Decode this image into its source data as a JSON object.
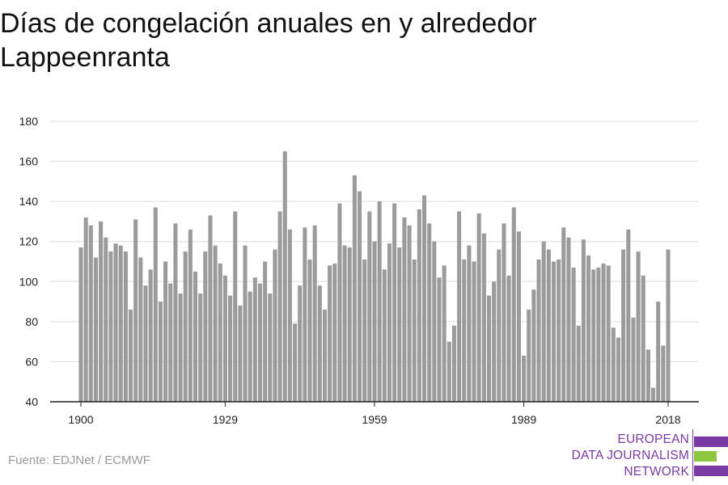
{
  "title": "Días de congelación anuales en y alrededor Lappeenranta",
  "source": "Fuente: EDJNet / ECMWF",
  "logo": {
    "lines": [
      "EUROPEAN",
      "DATA JOURNALISM",
      "NETWORK"
    ],
    "colors": {
      "purple": "#7a3aa3",
      "green": "#8dc63f"
    }
  },
  "colors": {
    "bar": "#9b9b9b",
    "grid": "#dddddd",
    "axis": "#222222"
  },
  "chart_data": {
    "type": "bar",
    "title": "Días de congelación anuales en y alrededor Lappeenranta",
    "xlabel": "",
    "ylabel": "",
    "ylim": [
      40,
      180
    ],
    "yticks": [
      40,
      60,
      80,
      100,
      120,
      140,
      160,
      180
    ],
    "xticks": [
      1900,
      1929,
      1959,
      1989,
      2018
    ],
    "grid": true,
    "x": [
      1900,
      1901,
      1902,
      1903,
      1904,
      1905,
      1906,
      1907,
      1908,
      1909,
      1910,
      1911,
      1912,
      1913,
      1914,
      1915,
      1916,
      1917,
      1918,
      1919,
      1920,
      1921,
      1922,
      1923,
      1924,
      1925,
      1926,
      1927,
      1928,
      1929,
      1930,
      1931,
      1932,
      1933,
      1934,
      1935,
      1936,
      1937,
      1938,
      1939,
      1940,
      1941,
      1942,
      1943,
      1944,
      1945,
      1946,
      1947,
      1948,
      1949,
      1950,
      1951,
      1952,
      1953,
      1954,
      1955,
      1956,
      1957,
      1958,
      1959,
      1960,
      1961,
      1962,
      1963,
      1964,
      1965,
      1966,
      1967,
      1968,
      1969,
      1970,
      1971,
      1972,
      1973,
      1974,
      1975,
      1976,
      1977,
      1978,
      1979,
      1980,
      1981,
      1982,
      1983,
      1984,
      1985,
      1986,
      1987,
      1988,
      1989,
      1990,
      1991,
      1992,
      1993,
      1994,
      1995,
      1996,
      1997,
      1998,
      1999,
      2000,
      2001,
      2002,
      2003,
      2004,
      2005,
      2006,
      2007,
      2008,
      2009,
      2010,
      2011,
      2012,
      2013,
      2014,
      2015,
      2016,
      2017,
      2018
    ],
    "values": [
      117,
      132,
      128,
      112,
      130,
      122,
      115,
      119,
      118,
      115,
      86,
      131,
      112,
      98,
      106,
      137,
      90,
      110,
      99,
      129,
      94,
      115,
      126,
      105,
      94,
      115,
      133,
      118,
      109,
      103,
      93,
      135,
      88,
      118,
      95,
      102,
      99,
      110,
      94,
      116,
      135,
      165,
      126,
      79,
      98,
      127,
      111,
      128,
      98,
      86,
      108,
      109,
      139,
      118,
      117,
      153,
      145,
      111,
      135,
      120,
      140,
      106,
      119,
      139,
      117,
      132,
      128,
      111,
      136,
      143,
      129,
      120,
      102,
      108,
      70,
      78,
      135,
      111,
      118,
      110,
      134,
      124,
      93,
      100,
      116,
      129,
      103,
      137,
      125,
      63,
      86,
      96,
      111,
      120,
      116,
      110,
      111,
      127,
      122,
      107,
      78,
      121,
      113,
      106,
      107,
      109,
      108,
      77,
      72,
      116,
      126,
      82,
      115,
      103,
      66,
      47,
      90,
      68,
      116
    ]
  }
}
